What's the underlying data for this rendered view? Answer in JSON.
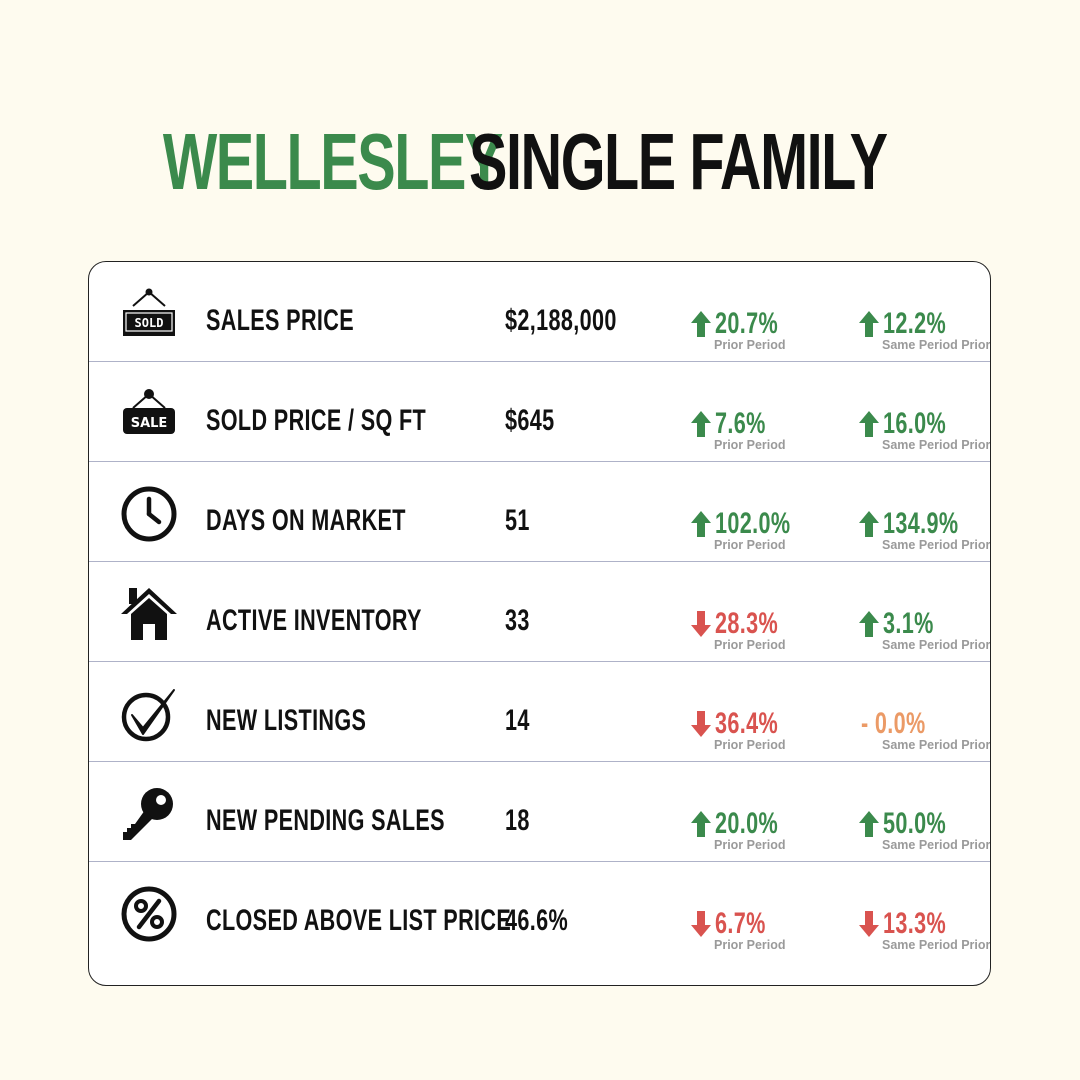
{
  "title": {
    "highlight": "WELLESLEY",
    "rest": "SINGLE FAMILY"
  },
  "colors": {
    "green": "#3b8a4c",
    "red": "#d9534f",
    "orange": "#eb9a66",
    "gray": "#9a9a9a",
    "background": "#fefbef"
  },
  "column_subtitles": {
    "prior_period": "Prior Period",
    "prior_year": "Same Period Prior Year"
  },
  "rows": [
    {
      "icon": "sold-sign-icon",
      "label": "SALES PRICE",
      "value": "$2,188,000",
      "prior_period": {
        "direction": "up",
        "text": "20.7%",
        "sub": "Prior Period"
      },
      "prior_year": {
        "direction": "up",
        "text": "12.2%",
        "sub": "Same Period Prior Year"
      }
    },
    {
      "icon": "sale-sign-icon",
      "label": "SOLD PRICE / SQ FT",
      "value": "$645",
      "prior_period": {
        "direction": "up",
        "text": "7.6%",
        "sub": "Prior Period"
      },
      "prior_year": {
        "direction": "up",
        "text": "16.0%",
        "sub": "Same Period Prior Year"
      }
    },
    {
      "icon": "clock-icon",
      "label": "DAYS ON MARKET",
      "value": "51",
      "prior_period": {
        "direction": "up",
        "text": "102.0%",
        "sub": "Prior Period"
      },
      "prior_year": {
        "direction": "up",
        "text": "134.9%",
        "sub": "Same Period Prior Year"
      }
    },
    {
      "icon": "house-icon",
      "label": "ACTIVE INVENTORY",
      "value": "33",
      "prior_period": {
        "direction": "down",
        "text": "28.3%",
        "sub": "Prior Period"
      },
      "prior_year": {
        "direction": "up",
        "text": "3.1%",
        "sub": "Same Period Prior Year"
      }
    },
    {
      "icon": "checkmark-circle-icon",
      "label": "NEW LISTINGS",
      "value": "14",
      "prior_period": {
        "direction": "down",
        "text": "36.4%",
        "sub": "Prior Period"
      },
      "prior_year": {
        "direction": "flat",
        "text": "- 0.0%",
        "sub": "Same Period Prior Year"
      }
    },
    {
      "icon": "key-icon",
      "label": "NEW PENDING SALES",
      "value": "18",
      "prior_period": {
        "direction": "up",
        "text": "20.0%",
        "sub": "Prior Period"
      },
      "prior_year": {
        "direction": "up",
        "text": "50.0%",
        "sub": "Same Period Prior Year"
      }
    },
    {
      "icon": "percent-circle-icon",
      "label": "CLOSED ABOVE LIST PRICE",
      "value": "46.6%",
      "prior_period": {
        "direction": "down",
        "text": "6.7%",
        "sub": "Prior Period"
      },
      "prior_year": {
        "direction": "down",
        "text": "13.3%",
        "sub": "Same Period Prior Year"
      }
    }
  ]
}
